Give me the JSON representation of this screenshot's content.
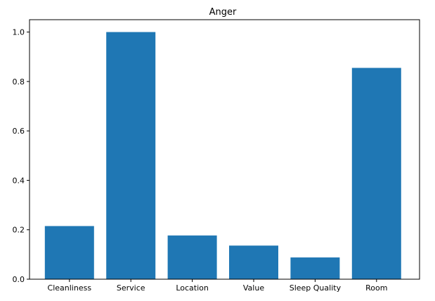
{
  "chart_data": {
    "type": "bar",
    "title": "Anger",
    "xlabel": "",
    "ylabel": "",
    "categories": [
      "Cleanliness",
      "Service",
      "Location",
      "Value",
      "Sleep Quality",
      "Room"
    ],
    "values": [
      0.215,
      1.0,
      0.177,
      0.136,
      0.088,
      0.855
    ],
    "ylim": [
      0.0,
      1.05
    ],
    "yticks": [
      "0.0",
      "0.2",
      "0.4",
      "0.6",
      "0.8",
      "1.0"
    ],
    "grid": false,
    "bar_color": "#1f77b4"
  }
}
